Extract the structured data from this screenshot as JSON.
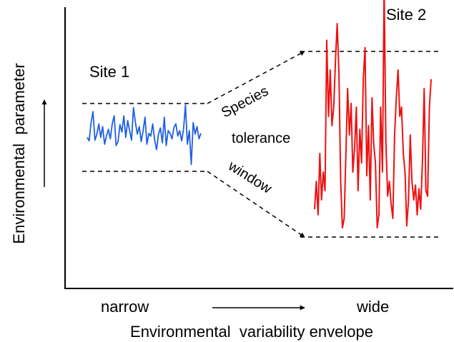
{
  "labels": {
    "site1": "Site 1",
    "site2": "Site 2",
    "species": "Species",
    "tolerance": "tolerance",
    "window": "window",
    "narrow": "narrow",
    "wide": "wide",
    "x_axis": "Environmental  variability envelope",
    "y_axis": "Environmental  parameter"
  },
  "colors": {
    "site1_series": "#1f5fe0",
    "site2_series": "#ee1111",
    "narrow_text": "#1f5fe0",
    "wide_text": "#ee1111",
    "axes": "#000000"
  },
  "series": {
    "site1": [
      0.5,
      0.45,
      0.72,
      0.88,
      0.46,
      0.55,
      0.7,
      0.5,
      0.66,
      0.4,
      0.52,
      0.62,
      0.48,
      0.7,
      0.82,
      0.38,
      0.44,
      0.69,
      0.58,
      0.82,
      0.5,
      0.75,
      0.6,
      0.46,
      0.94,
      0.72,
      0.55,
      0.66,
      0.44,
      0.6,
      0.8,
      0.4,
      0.56,
      0.52,
      0.7,
      0.46,
      0.32,
      0.55,
      0.64,
      0.42,
      0.8,
      0.38,
      0.6,
      0.56,
      0.48,
      0.65,
      0.7,
      0.52,
      0.6,
      0.45,
      0.62,
      0.98,
      0.4,
      0.6,
      0.1,
      0.72,
      0.55,
      0.66,
      0.48,
      0.56
    ],
    "site2": [
      0.15,
      0.3,
      0.12,
      0.45,
      0.2,
      0.35,
      0.25,
      1.06,
      0.65,
      0.9,
      0.6,
      0.7,
      0.95,
      1.15,
      0.88,
      0.3,
      0.05,
      0.1,
      0.45,
      0.8,
      0.55,
      0.72,
      0.35,
      0.48,
      0.7,
      0.25,
      0.58,
      0.4,
      0.85,
      1.02,
      0.33,
      0.6,
      0.2,
      0.75,
      0.5,
      0.4,
      0.05,
      0.12,
      0.7,
      0.35,
      1.35,
      0.52,
      0.22,
      0.3,
      0.18,
      0.1,
      0.55,
      0.75,
      0.9,
      0.65,
      0.7,
      0.45,
      0.35,
      0.06,
      0.2,
      0.55,
      0.3,
      0.2,
      0.28,
      0.12,
      0.26,
      0.15,
      0.4,
      0.8,
      0.25,
      0.22,
      0.7,
      0.85
    ]
  }
}
